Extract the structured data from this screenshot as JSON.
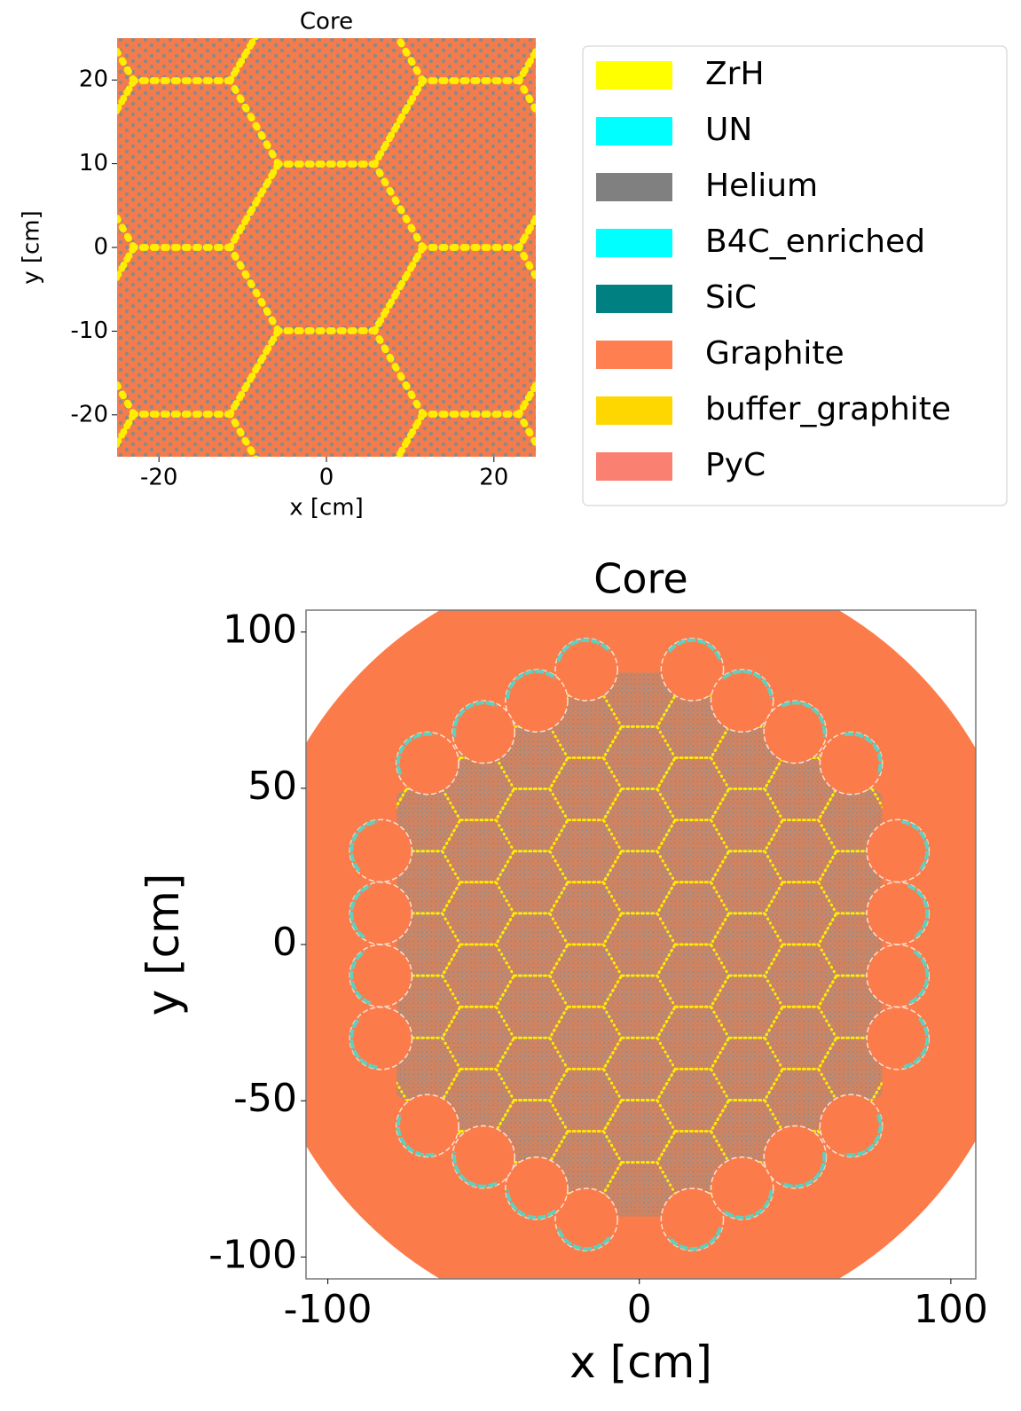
{
  "chart_data": [
    {
      "type": "geometry",
      "title": "Core",
      "xlabel": "x [cm]",
      "ylabel": "y [cm]",
      "xlim": [
        -25,
        25
      ],
      "ylim": [
        -25,
        25
      ],
      "xticks": [
        -20,
        0,
        20
      ],
      "yticks": [
        -20,
        -10,
        0,
        10,
        20
      ],
      "legend": [
        {
          "name": "ZrH",
          "color": "#ffff00"
        },
        {
          "name": "UN",
          "color": "#00ffff"
        },
        {
          "name": "Helium",
          "color": "#808080"
        },
        {
          "name": "B4C_enriched",
          "color": "#00ffff"
        },
        {
          "name": "SiC",
          "color": "#008080"
        },
        {
          "name": "Graphite",
          "color": "#ff7f50"
        },
        {
          "name": "buffer_graphite",
          "color": "#ffd700"
        },
        {
          "name": "PyC",
          "color": "#fa8072"
        }
      ]
    },
    {
      "type": "geometry",
      "title": "Core",
      "xlabel": "x [cm]",
      "ylabel": "y [cm]",
      "xlim": [
        -107,
        108
      ],
      "ylim": [
        -107,
        107
      ],
      "xticks": [
        -100,
        0,
        100
      ],
      "yticks": [
        -100,
        -50,
        0,
        50,
        100
      ]
    }
  ]
}
